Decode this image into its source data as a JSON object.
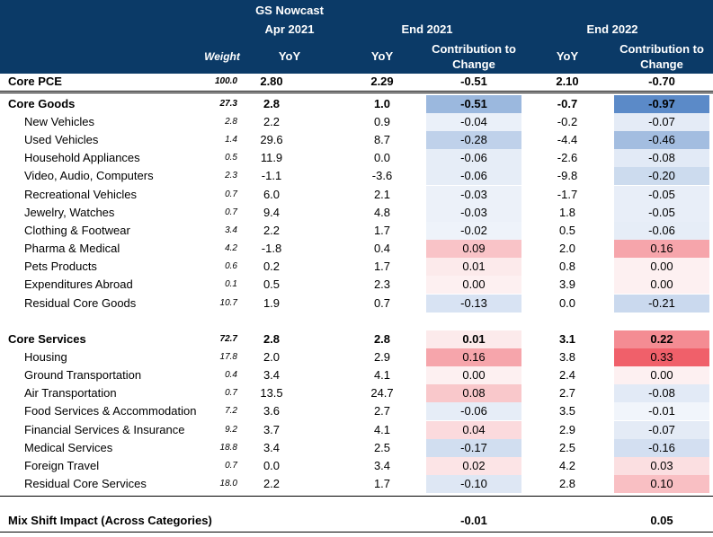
{
  "header": {
    "gs_nowcast": "GS Nowcast",
    "apr_2021": "Apr 2021",
    "end_2021": "End 2021",
    "end_2022": "End 2022",
    "weight": "Weight",
    "yoy": "YoY",
    "contribution_line1": "Contribution to",
    "contribution_line2": "Change"
  },
  "core_pce": {
    "label": "Core PCE",
    "weight": "100.0",
    "apr": "2.80",
    "e21": "2.29",
    "c21": "-0.51",
    "e22": "2.10",
    "c22": "-0.70"
  },
  "core_goods": {
    "label": "Core Goods",
    "weight": "27.3",
    "apr": "2.8",
    "e21": "1.0",
    "c21": "-0.51",
    "e22": "-0.7",
    "c22": "-0.97"
  },
  "goods_items": [
    {
      "label": "New Vehicles",
      "weight": "2.8",
      "apr": "2.2",
      "e21": "0.9",
      "c21": "-0.04",
      "e22": "-0.2",
      "c22": "-0.07"
    },
    {
      "label": "Used Vehicles",
      "weight": "1.4",
      "apr": "29.6",
      "e21": "8.7",
      "c21": "-0.28",
      "e22": "-4.4",
      "c22": "-0.46"
    },
    {
      "label": "Household Appliances",
      "weight": "0.5",
      "apr": "11.9",
      "e21": "0.0",
      "c21": "-0.06",
      "e22": "-2.6",
      "c22": "-0.08"
    },
    {
      "label": "Video, Audio, Computers",
      "weight": "2.3",
      "apr": "-1.1",
      "e21": "-3.6",
      "c21": "-0.06",
      "e22": "-9.8",
      "c22": "-0.20"
    },
    {
      "label": "Recreational Vehicles",
      "weight": "0.7",
      "apr": "6.0",
      "e21": "2.1",
      "c21": "-0.03",
      "e22": "-1.7",
      "c22": "-0.05"
    },
    {
      "label": "Jewelry, Watches",
      "weight": "0.7",
      "apr": "9.4",
      "e21": "4.8",
      "c21": "-0.03",
      "e22": "1.8",
      "c22": "-0.05"
    },
    {
      "label": "Clothing & Footwear",
      "weight": "3.4",
      "apr": "2.2",
      "e21": "1.7",
      "c21": "-0.02",
      "e22": "0.5",
      "c22": "-0.06"
    },
    {
      "label": "Pharma & Medical",
      "weight": "4.2",
      "apr": "-1.8",
      "e21": "0.4",
      "c21": "0.09",
      "e22": "2.0",
      "c22": "0.16"
    },
    {
      "label": "Pets Products",
      "weight": "0.6",
      "apr": "0.2",
      "e21": "1.7",
      "c21": "0.01",
      "e22": "0.8",
      "c22": "0.00"
    },
    {
      "label": "Expenditures Abroad",
      "weight": "0.1",
      "apr": "0.5",
      "e21": "2.3",
      "c21": "0.00",
      "e22": "3.9",
      "c22": "0.00"
    },
    {
      "label": "Residual Core Goods",
      "weight": "10.7",
      "apr": "1.9",
      "e21": "0.7",
      "c21": "-0.13",
      "e22": "0.0",
      "c22": "-0.21"
    }
  ],
  "core_services": {
    "label": "Core Services",
    "weight": "72.7",
    "apr": "2.8",
    "e21": "2.8",
    "c21": "0.01",
    "e22": "3.1",
    "c22": "0.22"
  },
  "services_items": [
    {
      "label": "Housing",
      "weight": "17.8",
      "apr": "2.0",
      "e21": "2.9",
      "c21": "0.16",
      "e22": "3.8",
      "c22": "0.33"
    },
    {
      "label": "Ground Transportation",
      "weight": "0.4",
      "apr": "3.4",
      "e21": "4.1",
      "c21": "0.00",
      "e22": "2.4",
      "c22": "0.00"
    },
    {
      "label": "Air Transportation",
      "weight": "0.7",
      "apr": "13.5",
      "e21": "24.7",
      "c21": "0.08",
      "e22": "2.7",
      "c22": "-0.08"
    },
    {
      "label": "Food Services & Accommodation",
      "weight": "7.2",
      "apr": "3.6",
      "e21": "2.7",
      "c21": "-0.06",
      "e22": "3.5",
      "c22": "-0.01"
    },
    {
      "label": "Financial Services & Insurance",
      "weight": "9.2",
      "apr": "3.7",
      "e21": "4.1",
      "c21": "0.04",
      "e22": "2.9",
      "c22": "-0.07"
    },
    {
      "label": "Medical Services",
      "weight": "18.8",
      "apr": "3.4",
      "e21": "2.5",
      "c21": "-0.17",
      "e22": "2.5",
      "c22": "-0.16"
    },
    {
      "label": "Foreign Travel",
      "weight": "0.7",
      "apr": "0.0",
      "e21": "3.4",
      "c21": "0.02",
      "e22": "4.2",
      "c22": "0.03"
    },
    {
      "label": "Residual Core Services",
      "weight": "18.0",
      "apr": "2.2",
      "e21": "1.7",
      "c21": "-0.10",
      "e22": "2.8",
      "c22": "0.10"
    }
  ],
  "mix_shift": {
    "label": "Mix Shift Impact (Across Categories)",
    "c21": "-0.01",
    "c22": "0.05"
  },
  "colors": {
    "header_bg": "#0b3a67",
    "neg_full": "#5b8ac8",
    "pos_full": "#f0606a"
  }
}
